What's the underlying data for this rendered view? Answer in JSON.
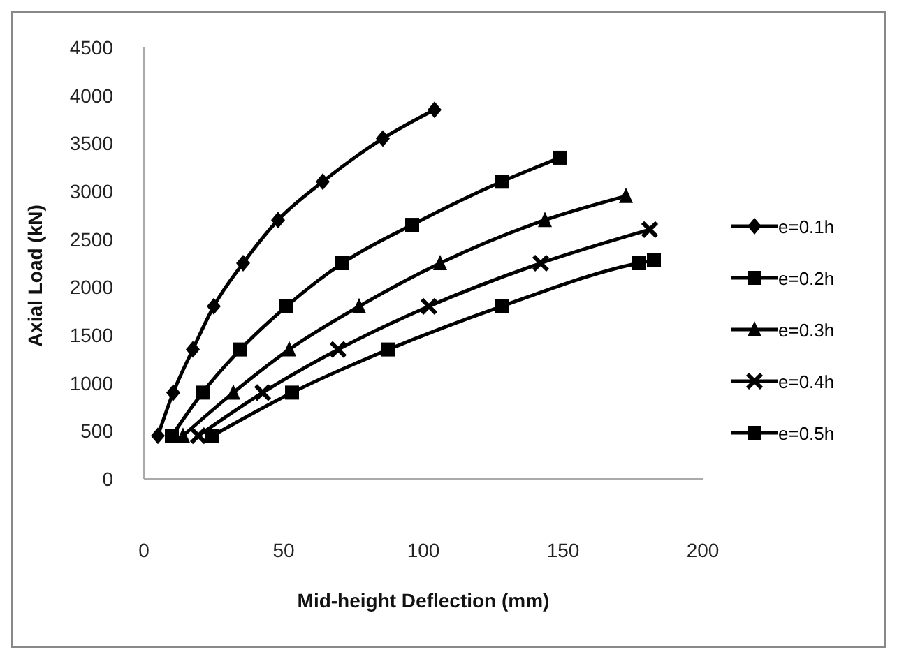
{
  "chart_data": {
    "type": "line",
    "xlabel": "Mid-height Deflection (mm)",
    "ylabel": "Axial Load  (kN)",
    "xlim": [
      0,
      200
    ],
    "xticks": [
      0,
      50,
      100,
      150,
      200
    ],
    "ylim": [
      0,
      4500
    ],
    "yticks": [
      0,
      500,
      1000,
      1500,
      2000,
      2500,
      3000,
      3500,
      4000,
      4500
    ],
    "grid": false,
    "legend": "right",
    "line_style": "solid",
    "series": [
      {
        "name": "e=0.1h",
        "color": "#000000",
        "marker": "diamond",
        "x": [
          5,
          10.5,
          17.5,
          25,
          35.5,
          48,
          64,
          85.5,
          104
        ],
        "values": [
          450,
          900,
          1350,
          1800,
          2250,
          2700,
          3100,
          3550,
          3850
        ]
      },
      {
        "name": "e=0.2h",
        "color": "#000000",
        "marker": "square",
        "x": [
          10,
          21,
          34.5,
          51,
          71,
          96,
          128,
          149
        ],
        "values": [
          450,
          900,
          1350,
          1800,
          2250,
          2650,
          3100,
          3350
        ]
      },
      {
        "name": "e=0.3h",
        "color": "#000000",
        "marker": "triangle",
        "x": [
          14,
          32,
          52,
          77,
          106,
          143.5,
          172.5
        ],
        "values": [
          450,
          900,
          1350,
          1800,
          2250,
          2700,
          2950
        ]
      },
      {
        "name": "e=0.4h",
        "color": "#000000",
        "marker": "cross",
        "x": [
          19.5,
          42.5,
          69.5,
          102,
          142,
          181
        ],
        "values": [
          450,
          900,
          1350,
          1800,
          2250,
          2600
        ]
      },
      {
        "name": "e=0.5h",
        "color": "#000000",
        "marker": "square",
        "x": [
          24.5,
          53,
          87.5,
          128,
          177,
          182.5
        ],
        "values": [
          450,
          900,
          1350,
          1800,
          2250,
          2280
        ]
      }
    ]
  }
}
